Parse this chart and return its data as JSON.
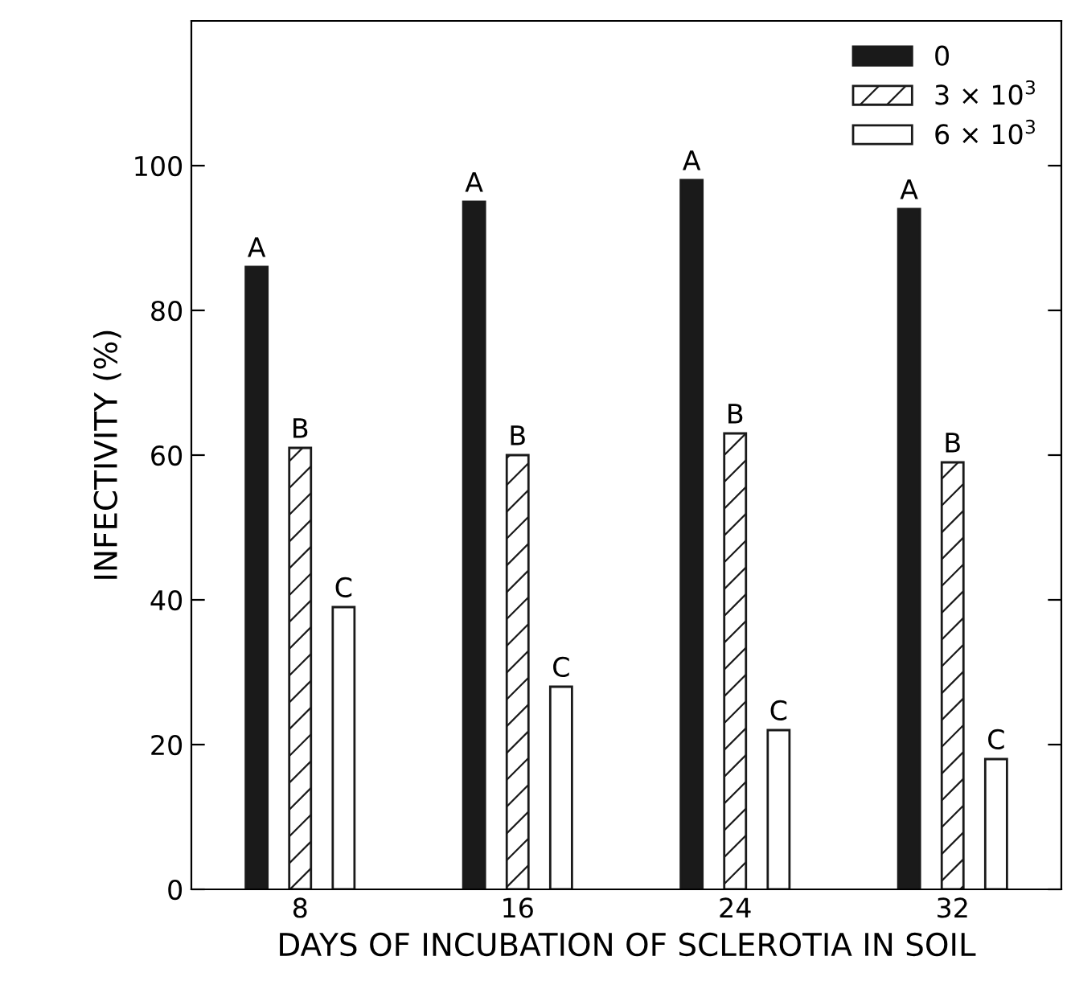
{
  "chart_data": {
    "type": "bar",
    "xlabel": "DAYS OF INCUBATION OF SCLEROTIA IN SOIL",
    "ylabel": "INFECTIVITY (%)",
    "categories": [
      "8",
      "16",
      "24",
      "32"
    ],
    "series": [
      {
        "name": "0",
        "color": "#1a1a1a",
        "values": [
          86,
          95,
          98,
          94
        ],
        "value_labels": [
          "A",
          "A",
          "A",
          "A"
        ]
      },
      {
        "name": "3 × 10$^{3}$",
        "color": "#1a1a1a",
        "values": [
          61,
          60,
          63,
          59
        ],
        "value_labels": [
          "B",
          "B",
          "B",
          "B"
        ]
      },
      {
        "name": "6 × 10$^{3}$",
        "color": "#ffffff",
        "values": [
          39,
          28,
          22,
          18
        ],
        "value_labels": [
          "C",
          "C",
          "C",
          "C"
        ]
      }
    ],
    "ylim": [
      0,
      120
    ],
    "yticks": [
      0,
      20,
      40,
      60,
      80,
      100
    ],
    "grid": false,
    "legend": "top right"
  }
}
